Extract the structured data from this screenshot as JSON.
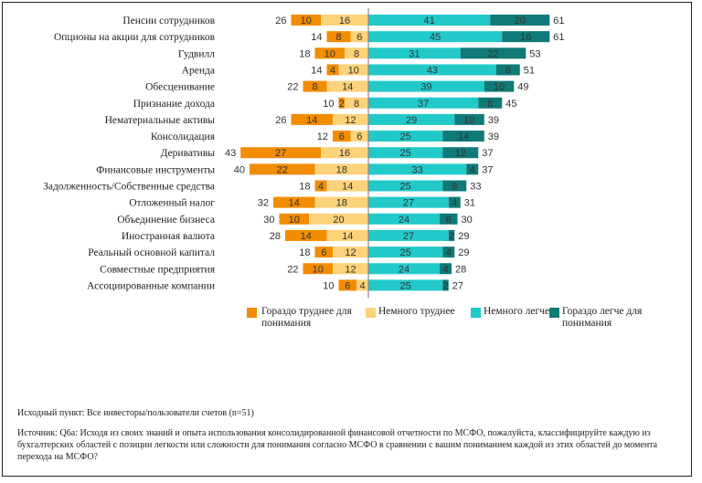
{
  "chart_data": {
    "type": "bar",
    "categories": [
      "Пенсии сотрудников",
      "Опционы на акции для сотрудников",
      "Гудвилл",
      "Аренда",
      "Обесценивание",
      "Признание дохода",
      "Нематериальные активы",
      "Консолидация",
      "Деривативы",
      "Финансовые инструменты",
      "Задолженность/Собственные средства",
      "Отложенный налог",
      "Объединение бизнеса",
      "Иностранная валюта",
      "Реальный основной капитал",
      "Совместные предприятия",
      "Ассоциированные компании"
    ],
    "series": [
      {
        "name": "Гораздо труднее для понимания",
        "side": "left",
        "values": [
          10,
          8,
          10,
          4,
          8,
          2,
          14,
          6,
          27,
          22,
          4,
          14,
          10,
          14,
          6,
          10,
          6
        ]
      },
      {
        "name": "Немного труднее",
        "side": "left",
        "values": [
          16,
          6,
          8,
          10,
          14,
          8,
          12,
          6,
          16,
          18,
          14,
          18,
          20,
          14,
          12,
          12,
          4
        ]
      },
      {
        "name": "Немного легче",
        "side": "right",
        "values": [
          41,
          45,
          31,
          43,
          39,
          37,
          29,
          25,
          25,
          33,
          25,
          27,
          24,
          27,
          25,
          24,
          25
        ]
      },
      {
        "name": "Гораздо легче для понимания",
        "side": "right",
        "values": [
          20,
          16,
          22,
          8,
          10,
          8,
          10,
          14,
          12,
          4,
          8,
          4,
          6,
          2,
          4,
          4,
          2
        ]
      }
    ],
    "left_totals": [
      26,
      14,
      18,
      14,
      22,
      10,
      26,
      12,
      43,
      40,
      18,
      32,
      30,
      28,
      18,
      22,
      10
    ],
    "right_totals": [
      61,
      61,
      53,
      51,
      49,
      45,
      39,
      39,
      37,
      37,
      33,
      31,
      30,
      29,
      29,
      28,
      27
    ],
    "colors": {
      "much_harder": "#f28c00",
      "slightly_harder": "#fcd27a",
      "slightly_easier": "#22c9c9",
      "much_easier": "#0f7a77",
      "center_line": "#888888"
    },
    "legend_position": "bottom"
  },
  "legend": [
    {
      "label": "Гораздо труднее для понимания",
      "color": "#f28c00"
    },
    {
      "label": "Немного труднее",
      "color": "#fcd27a"
    },
    {
      "label": "Немного легче",
      "color": "#22c9c9"
    },
    {
      "label": "Гораздо легче для понимания",
      "color": "#0f7a77"
    }
  ],
  "footnotes": {
    "base": "Исходный пункт: Все инвесторы/пользователи счетов (n=51)",
    "source": "Источник: Q6a: Исходя из своих знаний и опыта использования консолидированной финансовой отчетности по МСФО, пожалуйста, классифицируйте каждую из бухгалтерских областей с позиции легкости или сложности для понимания согласно МСФО в сравнении с вашим пониманием каждой из этих областей до момента перехода на МСФО?"
  }
}
